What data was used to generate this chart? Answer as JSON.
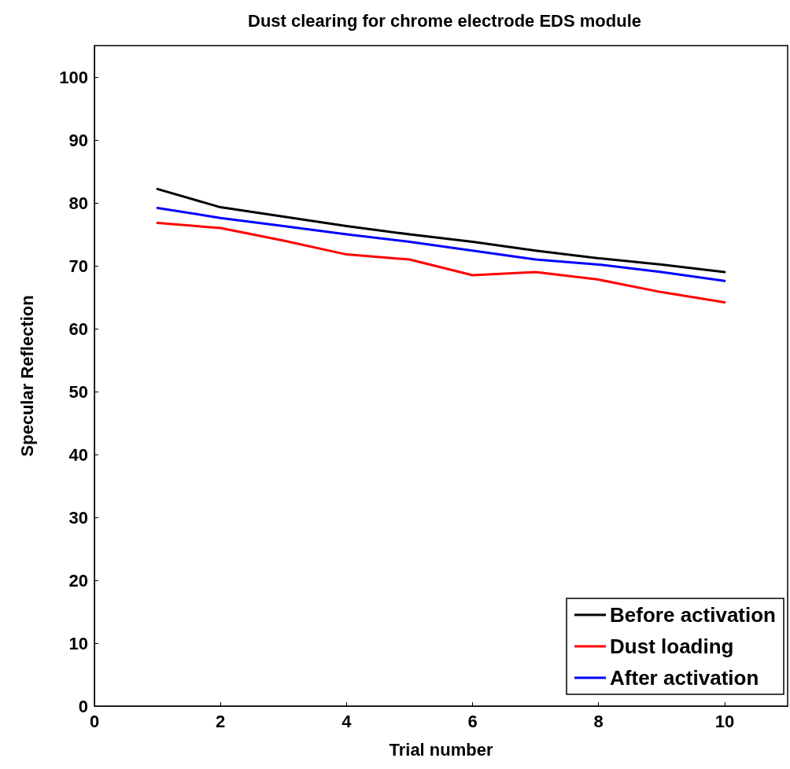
{
  "chart_data": {
    "type": "line",
    "title": "Dust clearing for chrome electrode EDS module",
    "xlabel": "Trial number",
    "ylabel": "Specular Reflection",
    "x": [
      1,
      2,
      3,
      4,
      5,
      6,
      7,
      8,
      9,
      10
    ],
    "series": [
      {
        "name": "Before activation",
        "color": "#000000",
        "values": [
          82.2,
          79.3,
          77.8,
          76.3,
          75,
          73.8,
          72.4,
          71.2,
          70.2,
          69
        ]
      },
      {
        "name": "Dust loading",
        "color": "#ff0000",
        "values": [
          76.8,
          76,
          74,
          71.8,
          71,
          68.5,
          69,
          67.8,
          65.8,
          64.2
        ]
      },
      {
        "name": "After activation",
        "color": "#0000ff",
        "values": [
          79.2,
          77.6,
          76.3,
          75,
          73.8,
          72.4,
          71,
          70.2,
          69,
          67.6
        ]
      }
    ],
    "xlim": [
      0,
      11
    ],
    "xticks": [
      0,
      2,
      4,
      6,
      8,
      10
    ],
    "ylim": [
      0,
      105
    ],
    "yticks": [
      0,
      10,
      20,
      30,
      40,
      50,
      60,
      70,
      80,
      90,
      100
    ],
    "grid": false,
    "legend": "bottom right",
    "marker": "none",
    "line_style": "solid"
  }
}
